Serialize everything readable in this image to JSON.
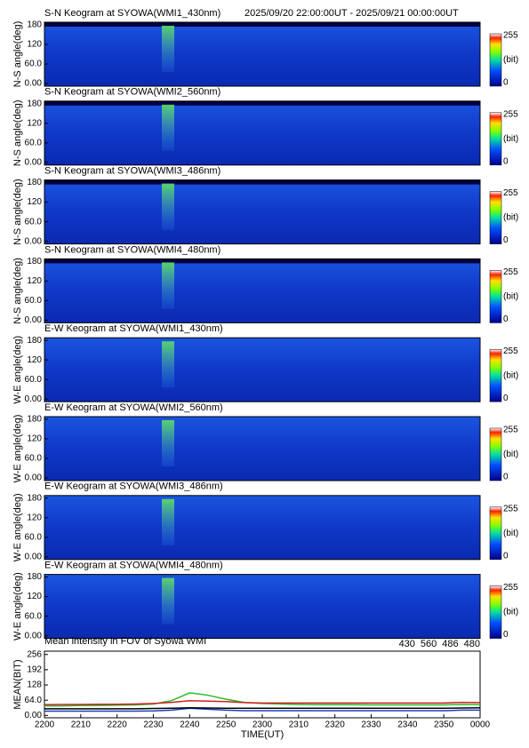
{
  "header": {
    "time_range": "2025/09/20 22:00:00UT - 2025/09/21 00:00:00UT"
  },
  "keograms": {
    "ylim": [
      -8,
      188
    ],
    "yticks": [
      {
        "value": 0,
        "label": "0.00"
      },
      {
        "value": 60,
        "label": "60.0"
      },
      120,
      180
    ],
    "colorbar": {
      "max": "255",
      "unit": "(bit)",
      "min": "0"
    },
    "panels": [
      {
        "title": "S-N Keogram at SYOWA(WMI1_430nm)",
        "y_label": "N-S angle(deg)"
      },
      {
        "title": "S-N Keogram at SYOWA(WMI2_560nm)",
        "y_label": "N-S angle(deg)"
      },
      {
        "title": "S-N Keogram at SYOWA(WMI3_486nm)",
        "y_label": "N-S angle(deg)"
      },
      {
        "title": "S-N Keogram at SYOWA(WMI4_480nm)",
        "y_label": "N-S angle(deg)"
      },
      {
        "title": "E-W Keogram at SYOWA(WMI1_430nm)",
        "y_label": "W-E angle(deg)"
      },
      {
        "title": "E-W Keogram at SYOWA(WMI2_560nm)",
        "y_label": "W-E angle(deg)"
      },
      {
        "title": "E-W Keogram at SYOWA(WMI3_486nm)",
        "y_label": "W-E angle(deg)"
      },
      {
        "title": "E-W Keogram at SYOWA(WMI4_480nm)",
        "y_label": "W-E angle(deg)"
      }
    ]
  },
  "chart_data": {
    "type": "line",
    "title": "Mean intensity in FOV of Syowa WMI",
    "x_label": "TIME(UT)",
    "y_label": "MEAN(BIT)",
    "x": [
      0,
      5,
      10,
      15,
      20,
      25,
      30,
      35,
      40,
      45,
      50,
      55,
      60,
      65,
      70,
      75,
      80,
      85,
      90,
      95,
      100,
      105,
      110,
      115,
      120
    ],
    "xlim": [
      0,
      120
    ],
    "xticks": [
      {
        "value": 0,
        "label": "2200"
      },
      {
        "value": 10,
        "label": "2210"
      },
      {
        "value": 20,
        "label": "2220"
      },
      {
        "value": 30,
        "label": "2230"
      },
      {
        "value": 40,
        "label": "2240"
      },
      {
        "value": 50,
        "label": "2250"
      },
      {
        "value": 60,
        "label": "2300"
      },
      {
        "value": 70,
        "label": "2310"
      },
      {
        "value": 80,
        "label": "2320"
      },
      {
        "value": 90,
        "label": "2330"
      },
      {
        "value": 100,
        "label": "2340"
      },
      {
        "value": 110,
        "label": "2350"
      },
      {
        "value": 120,
        "label": "0000"
      }
    ],
    "ylim": [
      -10,
      270
    ],
    "yticks": [
      {
        "value": 0,
        "label": "0.00"
      },
      {
        "value": 64,
        "label": "64.0"
      },
      128,
      192,
      256
    ],
    "series": [
      {
        "name": "430",
        "color": "#1f3fbf",
        "values": [
          18,
          18,
          18,
          18,
          18,
          18,
          19,
          22,
          30,
          26,
          22,
          20,
          20,
          20,
          20,
          20,
          20,
          20,
          20,
          20,
          20,
          20,
          20,
          22,
          22
        ]
      },
      {
        "name": "560",
        "color": "#22c02a",
        "values": [
          40,
          40,
          42,
          42,
          43,
          44,
          48,
          62,
          95,
          85,
          68,
          55,
          50,
          48,
          46,
          45,
          45,
          45,
          44,
          44,
          44,
          44,
          44,
          46,
          45
        ]
      },
      {
        "name": "486",
        "color": "#d02020",
        "values": [
          45,
          46,
          46,
          47,
          47,
          48,
          50,
          55,
          62,
          60,
          58,
          54,
          52,
          52,
          52,
          52,
          52,
          52,
          52,
          52,
          52,
          52,
          52,
          55,
          54
        ]
      },
      {
        "name": "480",
        "color": "#000000",
        "values": [
          28,
          28,
          28,
          28,
          28,
          28,
          29,
          30,
          32,
          31,
          30,
          30,
          30,
          30,
          30,
          30,
          30,
          30,
          30,
          30,
          30,
          30,
          30,
          31,
          32
        ]
      }
    ]
  }
}
